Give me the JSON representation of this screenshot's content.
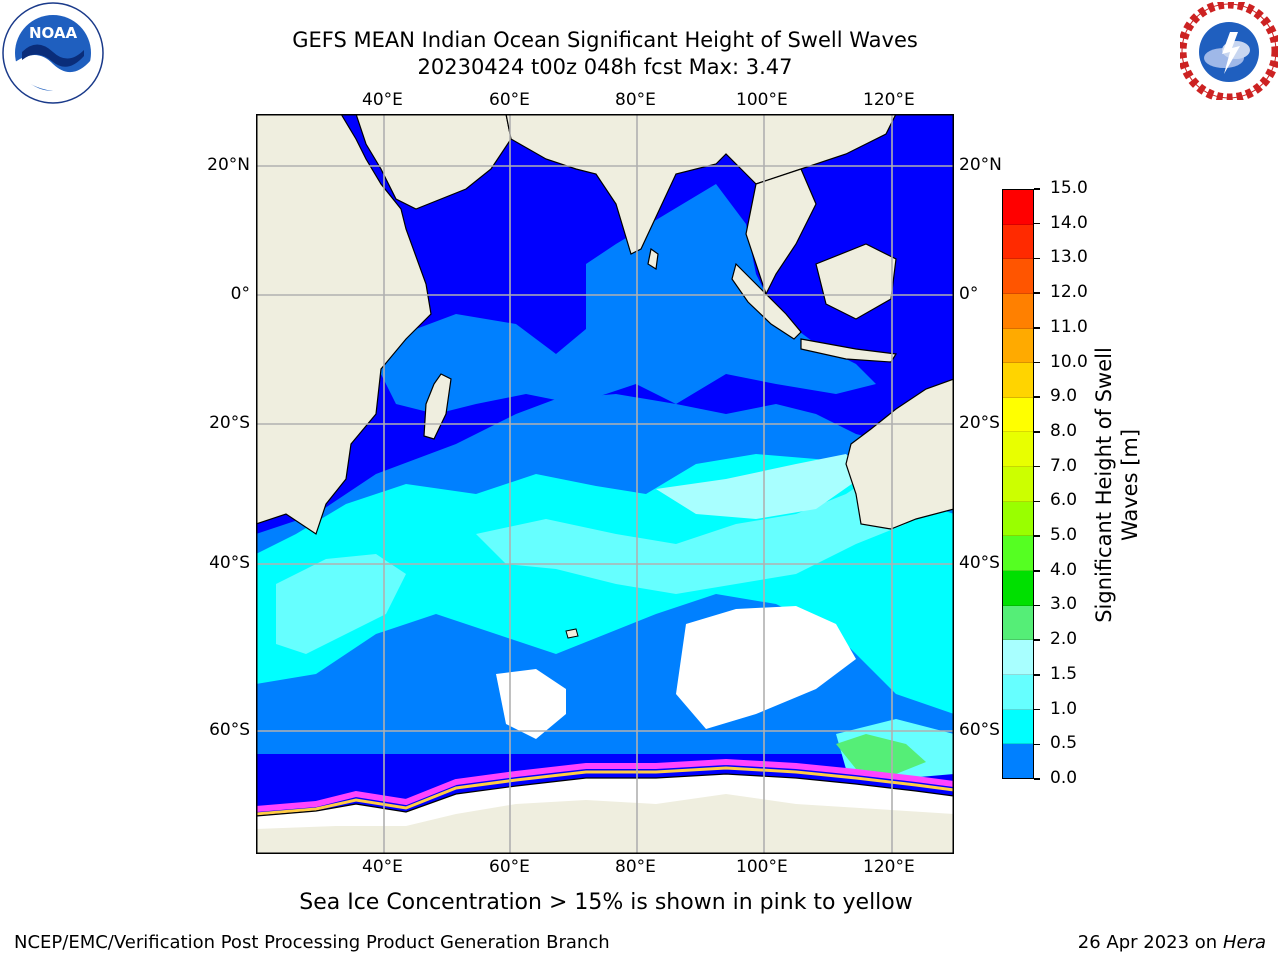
{
  "header": {
    "title_line1": "GEFS MEAN Indian Ocean Significant Height of Swell Waves",
    "title_line2": "20230424 t00z 048h fcst   Max: 3.47"
  },
  "logos": {
    "left": {
      "name": "NOAA",
      "text": "NOAA",
      "ring_text": "NATIONAL OCEANIC AND ATMOSPHERIC ADMINISTRATION · U.S. DEPARTMENT OF COMMERCE"
    },
    "right": {
      "name": "National Weather Service",
      "ring_text": "NATIONAL WEATHER SERVICE"
    }
  },
  "map": {
    "lon_labels": [
      "40°E",
      "60°E",
      "80°E",
      "100°E",
      "120°E"
    ],
    "lat_labels_left": [
      "20°N",
      "0°",
      "20°S",
      "40°S",
      "60°S"
    ],
    "lat_labels_right": [
      "20°N",
      "0°",
      "20°S",
      "40°S",
      "60°S"
    ],
    "colors": {
      "land": "#efeedf",
      "deep_blue": "#0000ff",
      "mid_blue": "#0080ff",
      "cyan": "#00ffff",
      "light_cyan": "#66ffff",
      "pale_cyan": "#a8ffff",
      "green": "#55ee77",
      "ice_white": "#ffffff",
      "ice_edge_pink": "#ff44ff",
      "ice_yellow": "#ffcc44",
      "grid": "#b0b0b0"
    }
  },
  "colorbar": {
    "label_line1": "Significant Height of Swell",
    "label_line2": "Waves [m]",
    "ticks": [
      "15.0",
      "14.0",
      "13.0",
      "12.0",
      "11.0",
      "10.0",
      "9.0",
      "8.0",
      "7.0",
      "6.0",
      "5.0",
      "4.0",
      "3.0",
      "2.0",
      "1.5",
      "1.0",
      "0.5",
      "0.0"
    ],
    "colors_top_to_bottom": [
      "#ff0000",
      "#ff2a00",
      "#ff5500",
      "#ff8000",
      "#ffaa00",
      "#ffd400",
      "#ffff00",
      "#e8ff00",
      "#ccff00",
      "#99ff00",
      "#55ff22",
      "#00e000",
      "#55ee77",
      "#a8ffff",
      "#66ffff",
      "#00ffff",
      "#0080ff",
      "#0000ff"
    ]
  },
  "footer": {
    "note": "Sea Ice Concentration > 15% is shown in pink to yellow",
    "left": "NCEP/EMC/Verification Post Processing Product Generation Branch",
    "right_prefix": "26 Apr 2023 on ",
    "right_italic": "Hera"
  }
}
